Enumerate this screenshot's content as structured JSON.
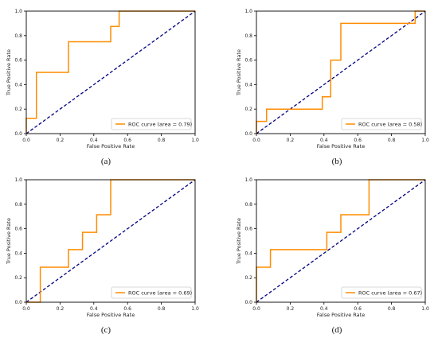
{
  "chart_data": [
    {
      "type": "line",
      "panel_label": "(a)",
      "xlabel": "False Positive Rate",
      "ylabel": "True Positive Rate",
      "xlim": [
        0,
        1
      ],
      "ylim": [
        0,
        1
      ],
      "ticks": [
        "0.0",
        "0.2",
        "0.4",
        "0.6",
        "0.8",
        "1.0"
      ],
      "grid": false,
      "legend_position": "lower-right",
      "series": [
        {
          "name": "ROC curve (area = 0.79)",
          "color": "#ff8c00",
          "style": "solid",
          "x": [
            0,
            0,
            0.06,
            0.06,
            0.25,
            0.25,
            0.5,
            0.5,
            0.55,
            0.55,
            1.0
          ],
          "y": [
            0,
            0.125,
            0.125,
            0.5,
            0.5,
            0.75,
            0.75,
            0.875,
            0.875,
            1.0,
            1.0
          ]
        },
        {
          "name": "",
          "color": "#000080",
          "style": "dashed",
          "x": [
            0,
            1
          ],
          "y": [
            0,
            1
          ]
        }
      ]
    },
    {
      "type": "line",
      "panel_label": "(b)",
      "xlabel": "False Positive Rate",
      "ylabel": "True Positive Rate",
      "xlim": [
        0,
        1
      ],
      "ylim": [
        0,
        1
      ],
      "ticks": [
        "0.0",
        "0.2",
        "0.4",
        "0.6",
        "0.8",
        "1.0"
      ],
      "grid": false,
      "legend_position": "lower-right",
      "series": [
        {
          "name": "ROC curve (area = 0.58)",
          "color": "#ff8c00",
          "style": "solid",
          "x": [
            0,
            0,
            0.06,
            0.06,
            0.39,
            0.39,
            0.44,
            0.44,
            0.5,
            0.5,
            0.94,
            0.94,
            1.0
          ],
          "y": [
            0,
            0.1,
            0.1,
            0.2,
            0.2,
            0.3,
            0.3,
            0.6,
            0.6,
            0.9,
            0.9,
            1.0,
            1.0
          ]
        },
        {
          "name": "",
          "color": "#000080",
          "style": "dashed",
          "x": [
            0,
            1
          ],
          "y": [
            0,
            1
          ]
        }
      ]
    },
    {
      "type": "line",
      "panel_label": "(c)",
      "xlabel": "False Positive Rate",
      "ylabel": "True Positive Rate",
      "xlim": [
        0,
        1
      ],
      "ylim": [
        0,
        1
      ],
      "ticks": [
        "0.0",
        "0.2",
        "0.4",
        "0.6",
        "0.8",
        "1.0"
      ],
      "grid": false,
      "legend_position": "lower-right",
      "series": [
        {
          "name": "ROC curve (area = 0.69)",
          "color": "#ff8c00",
          "style": "solid",
          "x": [
            0,
            0.083,
            0.083,
            0.25,
            0.25,
            0.333,
            0.333,
            0.417,
            0.417,
            0.5,
            0.5,
            1.0
          ],
          "y": [
            0,
            0,
            0.286,
            0.286,
            0.429,
            0.429,
            0.571,
            0.571,
            0.714,
            0.714,
            1.0,
            1.0
          ]
        },
        {
          "name": "",
          "color": "#000080",
          "style": "dashed",
          "x": [
            0,
            1
          ],
          "y": [
            0,
            1
          ]
        }
      ]
    },
    {
      "type": "line",
      "panel_label": "(d)",
      "xlabel": "False Positive Rate",
      "ylabel": "True Positive Rate",
      "xlim": [
        0,
        1
      ],
      "ylim": [
        0,
        1
      ],
      "ticks": [
        "0.0",
        "0.2",
        "0.4",
        "0.6",
        "0.8",
        "1.0"
      ],
      "grid": false,
      "legend_position": "lower-right",
      "series": [
        {
          "name": "ROC curve (area = 0.67)",
          "color": "#ff8c00",
          "style": "solid",
          "x": [
            0,
            0,
            0.083,
            0.083,
            0.417,
            0.417,
            0.5,
            0.5,
            0.667,
            0.667,
            1.0
          ],
          "y": [
            0,
            0.286,
            0.286,
            0.429,
            0.429,
            0.571,
            0.571,
            0.714,
            0.714,
            1.0,
            1.0
          ]
        },
        {
          "name": "",
          "color": "#000080",
          "style": "dashed",
          "x": [
            0,
            1
          ],
          "y": [
            0,
            1
          ]
        }
      ]
    }
  ]
}
